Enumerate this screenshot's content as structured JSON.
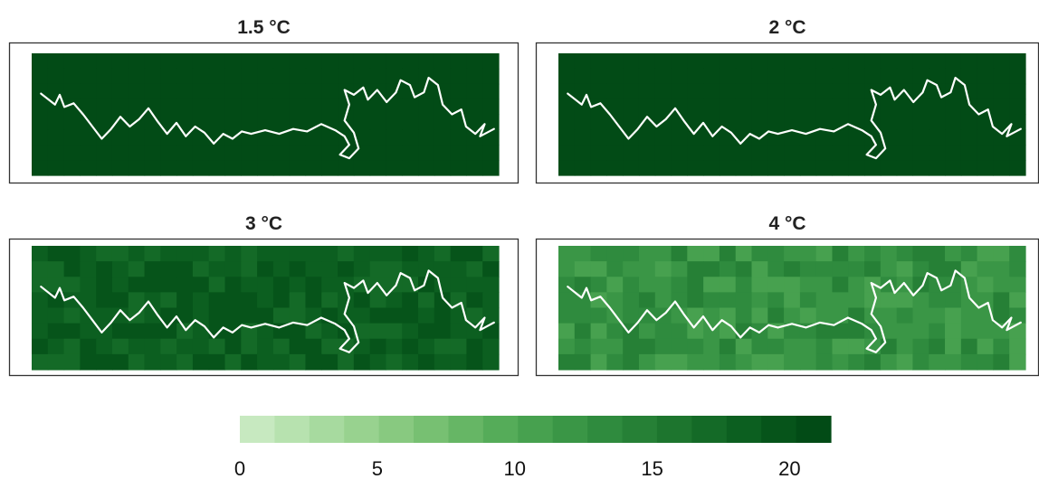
{
  "chart_data": {
    "type": "heatmap",
    "panels": [
      {
        "title": "1.5 °C",
        "level": 21.0,
        "variability": 0.0
      },
      {
        "title": "2 °C",
        "level": 20.8,
        "variability": 0.0
      },
      {
        "title": "3 °C",
        "level": 18.5,
        "variability": 1.6
      },
      {
        "title": "4 °C",
        "level": 12.5,
        "variability": 2.0
      }
    ],
    "colorbar": {
      "min": 0,
      "max": 21.5,
      "ticks": [
        0,
        5,
        10,
        15,
        20
      ],
      "colors": [
        "#c7e9c0",
        "#b7e2af",
        "#a7da9f",
        "#98d28f",
        "#88c980",
        "#77c072",
        "#66b665",
        "#55ac59",
        "#47a14f",
        "#3a9646",
        "#2f8b3e",
        "#268036",
        "#1d752e",
        "#146a27",
        "#0c5f20",
        "#06541a",
        "#024b16"
      ]
    }
  }
}
